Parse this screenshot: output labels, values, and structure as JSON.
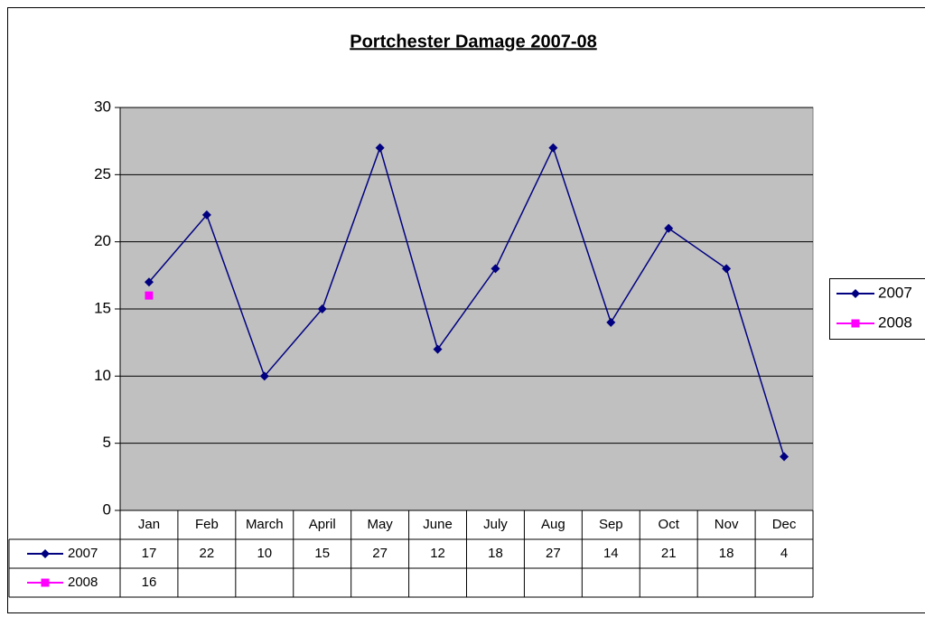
{
  "chart_data": {
    "type": "line",
    "title": "Portchester Damage 2007-08",
    "categories": [
      "Jan",
      "Feb",
      "March",
      "April",
      "May",
      "June",
      "July",
      "Aug",
      "Sep",
      "Oct",
      "Nov",
      "Dec"
    ],
    "series": [
      {
        "name": "2007",
        "color": "#000080",
        "marker": "diamond",
        "values": [
          17,
          22,
          10,
          15,
          27,
          12,
          18,
          27,
          14,
          21,
          18,
          4
        ]
      },
      {
        "name": "2008",
        "color": "#ff00ff",
        "marker": "square",
        "values": [
          16,
          null,
          null,
          null,
          null,
          null,
          null,
          null,
          null,
          null,
          null,
          null
        ]
      }
    ],
    "ylim": [
      0,
      30
    ],
    "yticks": [
      0,
      5,
      10,
      15,
      20,
      25,
      30
    ],
    "grid": true,
    "plot_background": "#c0c0c0",
    "legend": "right",
    "data_table": true
  }
}
